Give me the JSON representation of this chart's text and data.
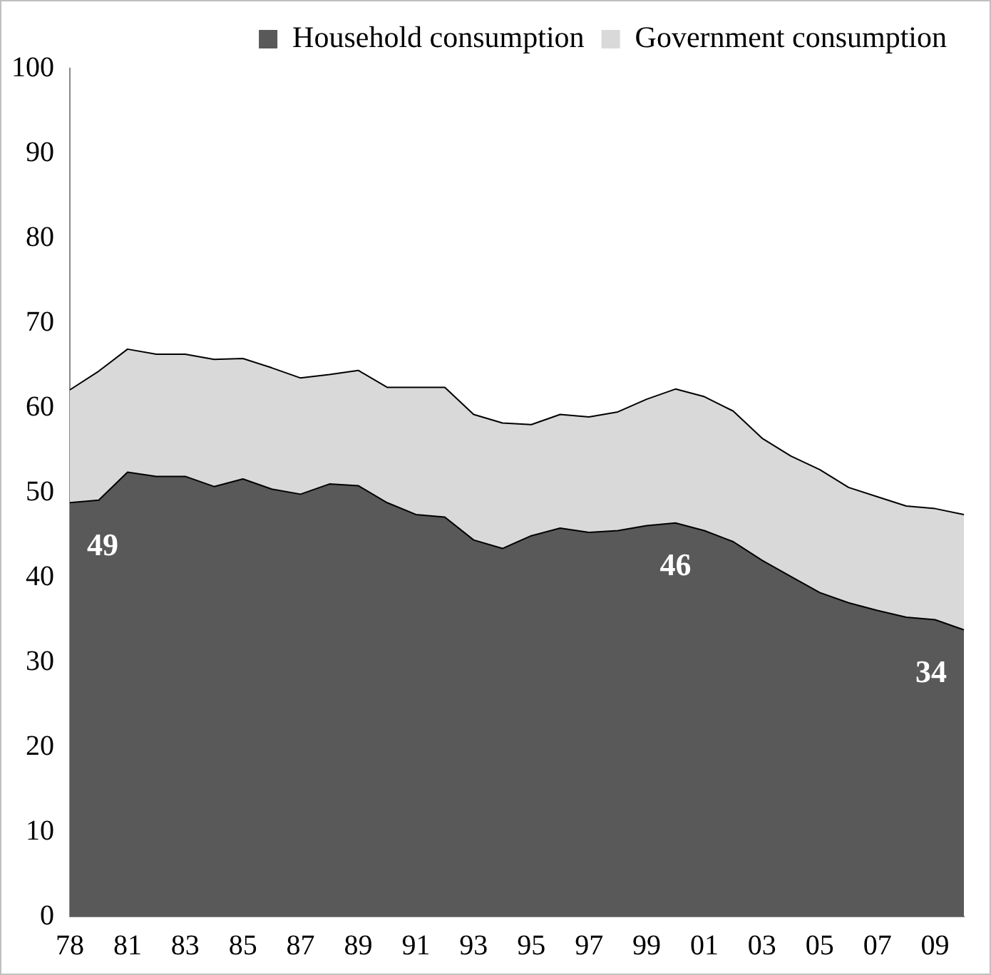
{
  "chart_data": {
    "type": "area",
    "stacked": true,
    "legend": "top right",
    "marker": "none",
    "categories": [
      "78",
      null,
      "81",
      null,
      "83",
      null,
      "85",
      null,
      "87",
      null,
      "89",
      null,
      "91",
      null,
      "93",
      null,
      "95",
      null,
      "97",
      null,
      "99",
      null,
      "01",
      null,
      "03",
      null,
      "05",
      null,
      "07",
      null,
      "09",
      null
    ],
    "ylim": [
      0,
      100
    ],
    "yticks": [
      0,
      10,
      20,
      30,
      40,
      50,
      60,
      70,
      80,
      90,
      100
    ],
    "series": [
      {
        "name": "Household consumption",
        "color": "#595959",
        "values": [
          48.8,
          49.1,
          52.4,
          51.9,
          51.9,
          50.7,
          51.6,
          50.4,
          49.8,
          51.0,
          50.8,
          48.8,
          47.4,
          47.1,
          44.4,
          43.4,
          44.9,
          45.8,
          45.3,
          45.5,
          46.1,
          46.4,
          45.5,
          44.2,
          42.0,
          40.1,
          38.2,
          37.0,
          36.1,
          35.3,
          35.0,
          33.8
        ],
        "value_labels": [
          "49",
          null,
          null,
          null,
          null,
          null,
          null,
          null,
          null,
          null,
          null,
          null,
          null,
          null,
          null,
          null,
          null,
          null,
          null,
          null,
          null,
          "46",
          null,
          null,
          null,
          null,
          null,
          null,
          null,
          null,
          null,
          "34"
        ]
      },
      {
        "name": "Government consumption",
        "color": "#d9d9d9",
        "values": [
          13.3,
          15.2,
          14.5,
          14.4,
          14.4,
          15.0,
          14.2,
          14.3,
          13.7,
          12.9,
          13.6,
          13.6,
          15.0,
          15.3,
          14.8,
          14.8,
          13.1,
          13.4,
          13.6,
          14.0,
          14.9,
          15.8,
          15.8,
          15.4,
          14.4,
          14.2,
          14.5,
          13.6,
          13.4,
          13.1,
          13.1,
          13.6
        ]
      }
    ]
  }
}
